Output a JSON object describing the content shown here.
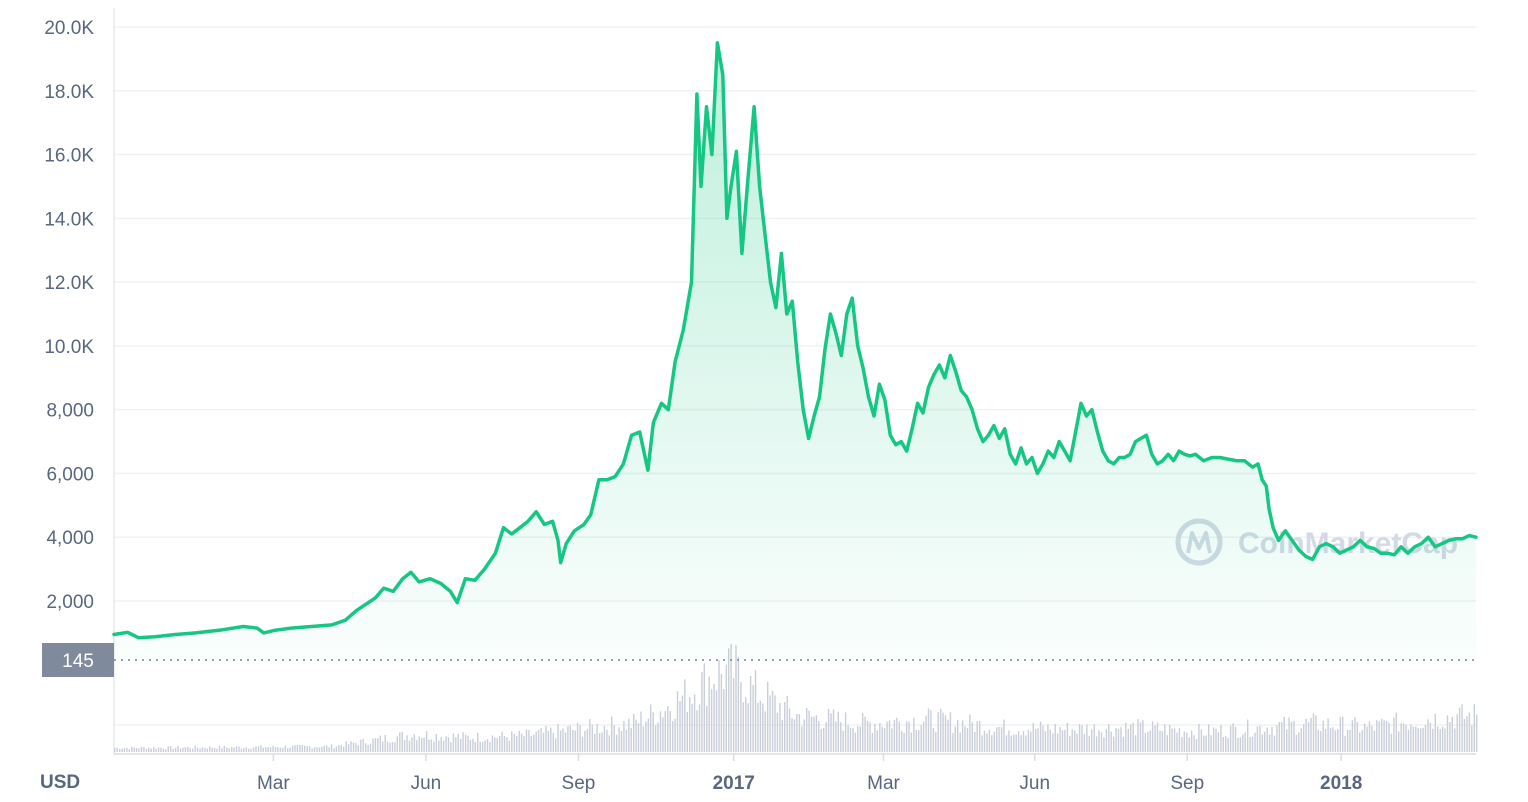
{
  "watermark": {
    "text": "CoinMarketCap"
  },
  "chart_data": {
    "type": "area",
    "currency_label": "USD",
    "reference_badge": {
      "value": "145"
    },
    "grid": true,
    "ylim": [
      0,
      20000
    ],
    "y_ticks": [
      {
        "value": 2000,
        "label": "2,000"
      },
      {
        "value": 4000,
        "label": "4,000"
      },
      {
        "value": 6000,
        "label": "6,000"
      },
      {
        "value": 8000,
        "label": "8,000"
      },
      {
        "value": 10000,
        "label": "10.0K"
      },
      {
        "value": 12000,
        "label": "12.0K"
      },
      {
        "value": 14000,
        "label": "14.0K"
      },
      {
        "value": 16000,
        "label": "16.0K"
      },
      {
        "value": 18000,
        "label": "18.0K"
      },
      {
        "value": 20000,
        "label": "20.0K"
      }
    ],
    "x_ticks": [
      {
        "t": 0.117,
        "label": "Mar",
        "bold": false
      },
      {
        "t": 0.229,
        "label": "Jun",
        "bold": false
      },
      {
        "t": 0.341,
        "label": "Sep",
        "bold": false
      },
      {
        "t": 0.455,
        "label": "2017",
        "bold": true
      },
      {
        "t": 0.565,
        "label": "Mar",
        "bold": false
      },
      {
        "t": 0.676,
        "label": "Jun",
        "bold": false
      },
      {
        "t": 0.788,
        "label": "Sep",
        "bold": false
      },
      {
        "t": 0.901,
        "label": "2018",
        "bold": true
      }
    ],
    "series": [
      {
        "color": "#16c784",
        "points": [
          [
            0.0,
            950
          ],
          [
            0.01,
            1020
          ],
          [
            0.018,
            850
          ],
          [
            0.03,
            880
          ],
          [
            0.045,
            950
          ],
          [
            0.06,
            1000
          ],
          [
            0.08,
            1100
          ],
          [
            0.095,
            1200
          ],
          [
            0.105,
            1150
          ],
          [
            0.11,
            1000
          ],
          [
            0.118,
            1080
          ],
          [
            0.13,
            1150
          ],
          [
            0.145,
            1200
          ],
          [
            0.16,
            1250
          ],
          [
            0.17,
            1400
          ],
          [
            0.178,
            1700
          ],
          [
            0.185,
            1900
          ],
          [
            0.192,
            2100
          ],
          [
            0.198,
            2400
          ],
          [
            0.205,
            2300
          ],
          [
            0.212,
            2700
          ],
          [
            0.218,
            2900
          ],
          [
            0.224,
            2600
          ],
          [
            0.232,
            2700
          ],
          [
            0.24,
            2550
          ],
          [
            0.247,
            2300
          ],
          [
            0.252,
            1950
          ],
          [
            0.258,
            2700
          ],
          [
            0.265,
            2650
          ],
          [
            0.272,
            3000
          ],
          [
            0.28,
            3500
          ],
          [
            0.286,
            4300
          ],
          [
            0.292,
            4100
          ],
          [
            0.298,
            4300
          ],
          [
            0.304,
            4500
          ],
          [
            0.31,
            4800
          ],
          [
            0.316,
            4400
          ],
          [
            0.322,
            4500
          ],
          [
            0.326,
            3900
          ],
          [
            0.328,
            3200
          ],
          [
            0.332,
            3800
          ],
          [
            0.338,
            4200
          ],
          [
            0.345,
            4400
          ],
          [
            0.35,
            4700
          ],
          [
            0.356,
            5800
          ],
          [
            0.362,
            5800
          ],
          [
            0.368,
            5900
          ],
          [
            0.374,
            6300
          ],
          [
            0.38,
            7200
          ],
          [
            0.386,
            7300
          ],
          [
            0.392,
            6100
          ],
          [
            0.396,
            7600
          ],
          [
            0.402,
            8200
          ],
          [
            0.407,
            8000
          ],
          [
            0.412,
            9500
          ],
          [
            0.418,
            10500
          ],
          [
            0.424,
            12000
          ],
          [
            0.428,
            17900
          ],
          [
            0.431,
            15000
          ],
          [
            0.435,
            17500
          ],
          [
            0.439,
            16000
          ],
          [
            0.443,
            19500
          ],
          [
            0.447,
            18500
          ],
          [
            0.45,
            14000
          ],
          [
            0.453,
            15000
          ],
          [
            0.457,
            16100
          ],
          [
            0.461,
            12900
          ],
          [
            0.465,
            15000
          ],
          [
            0.47,
            17500
          ],
          [
            0.474,
            15000
          ],
          [
            0.478,
            13500
          ],
          [
            0.482,
            12000
          ],
          [
            0.486,
            11200
          ],
          [
            0.49,
            12900
          ],
          [
            0.494,
            11000
          ],
          [
            0.498,
            11400
          ],
          [
            0.502,
            9500
          ],
          [
            0.506,
            8000
          ],
          [
            0.51,
            7100
          ],
          [
            0.514,
            7800
          ],
          [
            0.518,
            8400
          ],
          [
            0.522,
            9900
          ],
          [
            0.526,
            11000
          ],
          [
            0.53,
            10400
          ],
          [
            0.534,
            9700
          ],
          [
            0.538,
            11000
          ],
          [
            0.542,
            11500
          ],
          [
            0.546,
            10000
          ],
          [
            0.55,
            9300
          ],
          [
            0.554,
            8400
          ],
          [
            0.558,
            7800
          ],
          [
            0.562,
            8800
          ],
          [
            0.566,
            8300
          ],
          [
            0.57,
            7200
          ],
          [
            0.574,
            6900
          ],
          [
            0.578,
            7000
          ],
          [
            0.582,
            6700
          ],
          [
            0.586,
            7400
          ],
          [
            0.59,
            8200
          ],
          [
            0.594,
            7900
          ],
          [
            0.598,
            8700
          ],
          [
            0.602,
            9100
          ],
          [
            0.606,
            9400
          ],
          [
            0.61,
            9000
          ],
          [
            0.614,
            9700
          ],
          [
            0.618,
            9200
          ],
          [
            0.622,
            8600
          ],
          [
            0.626,
            8400
          ],
          [
            0.63,
            8000
          ],
          [
            0.634,
            7400
          ],
          [
            0.638,
            7000
          ],
          [
            0.642,
            7200
          ],
          [
            0.646,
            7500
          ],
          [
            0.65,
            7100
          ],
          [
            0.654,
            7400
          ],
          [
            0.658,
            6600
          ],
          [
            0.662,
            6300
          ],
          [
            0.666,
            6800
          ],
          [
            0.67,
            6300
          ],
          [
            0.674,
            6500
          ],
          [
            0.678,
            6000
          ],
          [
            0.682,
            6300
          ],
          [
            0.686,
            6700
          ],
          [
            0.69,
            6500
          ],
          [
            0.694,
            7000
          ],
          [
            0.698,
            6700
          ],
          [
            0.702,
            6400
          ],
          [
            0.706,
            7300
          ],
          [
            0.71,
            8200
          ],
          [
            0.714,
            7800
          ],
          [
            0.718,
            8000
          ],
          [
            0.722,
            7300
          ],
          [
            0.726,
            6700
          ],
          [
            0.73,
            6400
          ],
          [
            0.734,
            6300
          ],
          [
            0.738,
            6500
          ],
          [
            0.742,
            6500
          ],
          [
            0.746,
            6600
          ],
          [
            0.75,
            7000
          ],
          [
            0.754,
            7100
          ],
          [
            0.758,
            7200
          ],
          [
            0.762,
            6600
          ],
          [
            0.766,
            6300
          ],
          [
            0.77,
            6400
          ],
          [
            0.774,
            6600
          ],
          [
            0.778,
            6400
          ],
          [
            0.782,
            6700
          ],
          [
            0.786,
            6600
          ],
          [
            0.79,
            6550
          ],
          [
            0.794,
            6600
          ],
          [
            0.8,
            6400
          ],
          [
            0.806,
            6500
          ],
          [
            0.812,
            6500
          ],
          [
            0.818,
            6450
          ],
          [
            0.824,
            6400
          ],
          [
            0.83,
            6400
          ],
          [
            0.836,
            6200
          ],
          [
            0.84,
            6300
          ],
          [
            0.843,
            5800
          ],
          [
            0.846,
            5600
          ],
          [
            0.848,
            4900
          ],
          [
            0.851,
            4300
          ],
          [
            0.855,
            3900
          ],
          [
            0.86,
            4200
          ],
          [
            0.865,
            3900
          ],
          [
            0.87,
            3600
          ],
          [
            0.875,
            3400
          ],
          [
            0.88,
            3300
          ],
          [
            0.885,
            3700
          ],
          [
            0.89,
            3800
          ],
          [
            0.895,
            3700
          ],
          [
            0.9,
            3500
          ],
          [
            0.905,
            3600
          ],
          [
            0.91,
            3700
          ],
          [
            0.915,
            3900
          ],
          [
            0.92,
            3700
          ],
          [
            0.925,
            3650
          ],
          [
            0.93,
            3500
          ],
          [
            0.935,
            3500
          ],
          [
            0.94,
            3450
          ],
          [
            0.945,
            3700
          ],
          [
            0.95,
            3500
          ],
          [
            0.955,
            3700
          ],
          [
            0.96,
            3800
          ],
          [
            0.965,
            4000
          ],
          [
            0.97,
            3700
          ],
          [
            0.975,
            3800
          ],
          [
            0.98,
            3900
          ],
          [
            0.985,
            3950
          ],
          [
            0.99,
            3950
          ],
          [
            0.995,
            4050
          ],
          [
            1.0,
            4000
          ]
        ]
      }
    ],
    "volume_profile": [
      [
        0.0,
        0.05
      ],
      [
        0.1,
        0.06
      ],
      [
        0.16,
        0.07
      ],
      [
        0.18,
        0.12
      ],
      [
        0.22,
        0.22
      ],
      [
        0.26,
        0.18
      ],
      [
        0.3,
        0.2
      ],
      [
        0.34,
        0.28
      ],
      [
        0.38,
        0.35
      ],
      [
        0.4,
        0.5
      ],
      [
        0.42,
        0.7
      ],
      [
        0.44,
        0.95
      ],
      [
        0.455,
        1.0
      ],
      [
        0.47,
        0.75
      ],
      [
        0.5,
        0.45
      ],
      [
        0.55,
        0.35
      ],
      [
        0.6,
        0.4
      ],
      [
        0.65,
        0.3
      ],
      [
        0.7,
        0.28
      ],
      [
        0.75,
        0.3
      ],
      [
        0.8,
        0.25
      ],
      [
        0.84,
        0.3
      ],
      [
        0.88,
        0.35
      ],
      [
        0.92,
        0.3
      ],
      [
        0.96,
        0.4
      ],
      [
        1.0,
        0.45
      ]
    ]
  }
}
